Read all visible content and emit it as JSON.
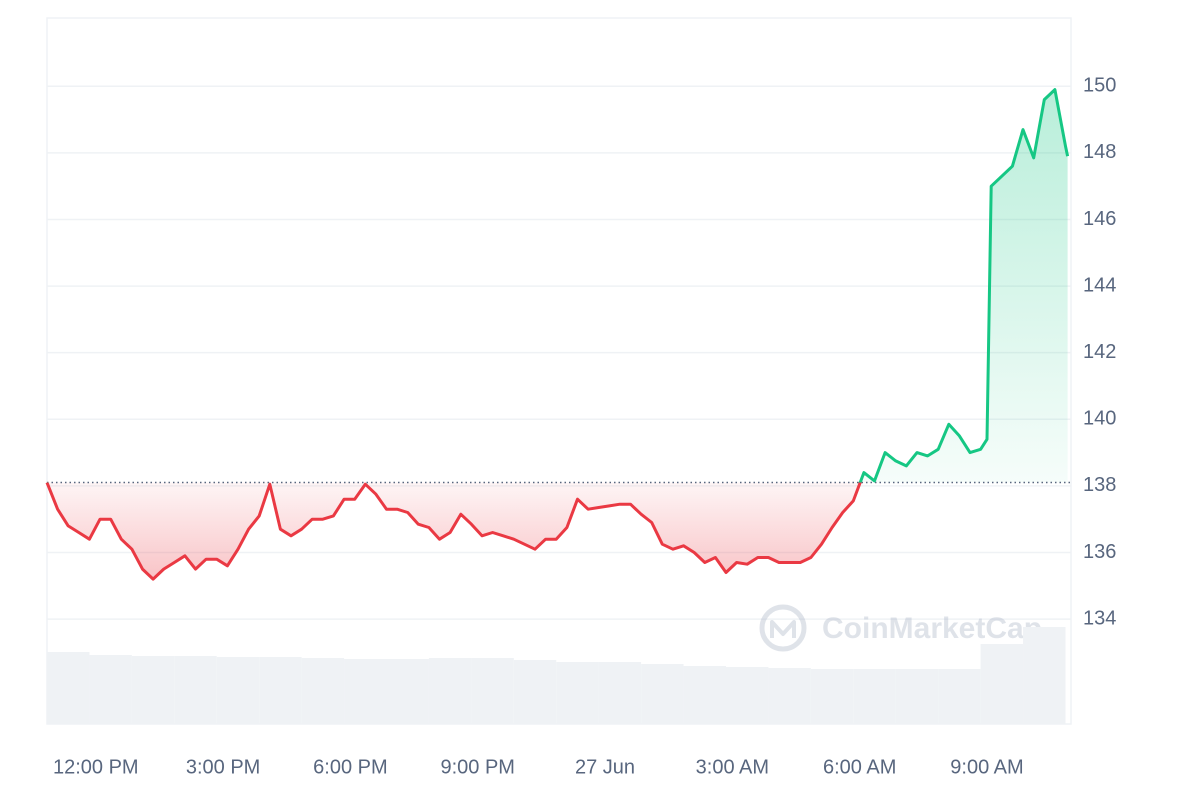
{
  "chart_data": {
    "type": "line",
    "x": [
      -1.15,
      -0.9,
      -0.65,
      -0.4,
      -0.15,
      0.1,
      0.35,
      0.6,
      0.85,
      1.1,
      1.35,
      1.6,
      1.85,
      2.1,
      2.35,
      2.6,
      2.85,
      3.1,
      3.35,
      3.6,
      3.85,
      4.1,
      4.35,
      4.6,
      4.85,
      5.1,
      5.35,
      5.6,
      5.85,
      6.1,
      6.35,
      6.6,
      6.85,
      7.1,
      7.35,
      7.6,
      7.85,
      8.1,
      8.35,
      8.6,
      8.85,
      9.1,
      9.35,
      9.6,
      9.85,
      10.1,
      10.35,
      10.6,
      10.85,
      11.1,
      11.35,
      11.6,
      11.85,
      12.1,
      12.35,
      12.6,
      12.85,
      13.1,
      13.35,
      13.6,
      13.85,
      14.1,
      14.35,
      14.6,
      14.85,
      15.1,
      15.35,
      15.6,
      15.85,
      16.1,
      16.35,
      16.6,
      16.85,
      17.1,
      17.35,
      17.6,
      17.85,
      18.1,
      18.35,
      18.6,
      18.85,
      19.1,
      19.35,
      19.6,
      19.85,
      20.1,
      20.35,
      20.6,
      20.85,
      21.0,
      21.1,
      21.35,
      21.6,
      21.85,
      22.1,
      22.35,
      22.6,
      22.85,
      22.9
    ],
    "series": [
      {
        "color_up": "#16c784",
        "color_down": "#ea3943",
        "values": [
          138.1,
          137.3,
          136.8,
          136.6,
          136.4,
          137.0,
          137.0,
          136.4,
          136.1,
          135.5,
          135.2,
          135.5,
          135.7,
          135.9,
          135.5,
          135.8,
          135.8,
          135.6,
          136.1,
          136.7,
          137.1,
          138.05,
          136.7,
          136.5,
          136.7,
          137.0,
          137.0,
          137.1,
          137.6,
          137.6,
          138.05,
          137.75,
          137.3,
          137.3,
          137.2,
          136.85,
          136.75,
          136.4,
          136.6,
          137.15,
          136.85,
          136.5,
          136.6,
          136.5,
          136.4,
          136.25,
          136.1,
          136.4,
          136.4,
          136.75,
          137.6,
          137.3,
          137.35,
          137.4,
          137.45,
          137.45,
          137.15,
          136.9,
          136.25,
          136.1,
          136.2,
          136.0,
          135.7,
          135.85,
          135.4,
          135.7,
          135.65,
          135.85,
          135.85,
          135.7,
          135.7,
          135.7,
          135.85,
          136.25,
          136.75,
          137.2,
          137.55,
          138.4,
          138.15,
          139.0,
          138.75,
          138.6,
          139.0,
          138.9,
          139.1,
          139.85,
          139.5,
          139.0,
          139.1,
          139.4,
          147.0,
          147.3,
          147.6,
          148.7,
          147.85,
          149.6,
          149.9,
          148.2,
          147.9
        ]
      }
    ],
    "baseline": 138.1,
    "xlim": [
      -1.15,
      22.98
    ],
    "xticks": [
      {
        "value": 0,
        "label": "12:00 PM"
      },
      {
        "value": 3,
        "label": "3:00 PM"
      },
      {
        "value": 6,
        "label": "6:00 PM"
      },
      {
        "value": 9,
        "label": "9:00 PM"
      },
      {
        "value": 12,
        "label": "27 Jun"
      },
      {
        "value": 15,
        "label": "3:00 AM"
      },
      {
        "value": 18,
        "label": "6:00 AM"
      },
      {
        "value": 21,
        "label": "9:00 AM"
      }
    ],
    "ylim": [
      130.85,
      152.05
    ],
    "yticks": [
      134,
      136,
      138,
      140,
      142,
      144,
      146,
      148,
      150
    ],
    "grid": true,
    "volume": {
      "color": "#eff2f5",
      "bins": [
        -1.15,
        -0.15,
        0.85,
        1.85,
        2.85,
        3.85,
        4.85,
        5.85,
        6.85,
        7.85,
        8.85,
        9.85,
        10.85,
        11.85,
        12.85,
        13.85,
        14.85,
        15.85,
        16.85,
        17.85,
        18.85,
        19.85,
        20.85,
        21.85,
        22.85
      ],
      "values": [
        72,
        69,
        68,
        68,
        67,
        67,
        66,
        65,
        65,
        66,
        66,
        64,
        62,
        62,
        60,
        58,
        57,
        56,
        55,
        55,
        55,
        55,
        80,
        97
      ],
      "ylim": [
        0,
        100
      ]
    },
    "watermark": "CoinMarketCap"
  }
}
